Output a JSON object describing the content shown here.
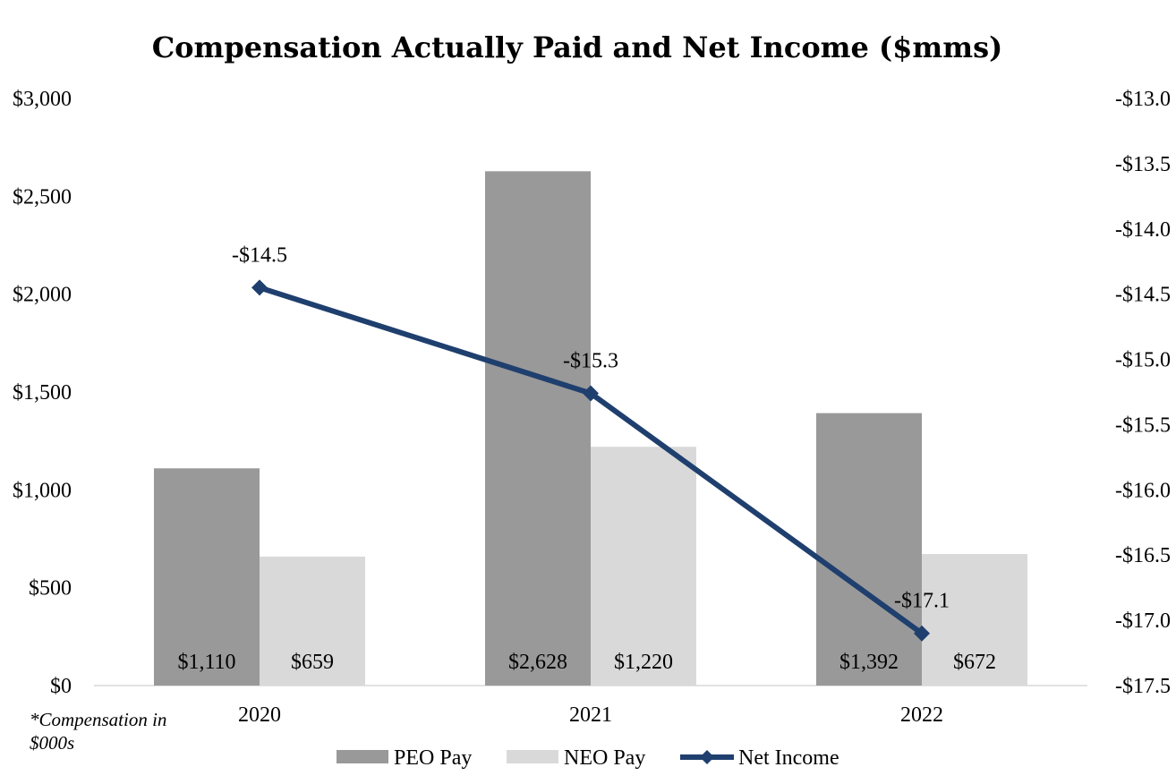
{
  "chart_data": {
    "type": "bar",
    "title": "Compensation Actually Paid and Net Income ($mms)",
    "categories": [
      "2020",
      "2021",
      "2022"
    ],
    "series": [
      {
        "name": "PEO Pay",
        "type": "bar",
        "axis": "left",
        "color": "#999999",
        "values": [
          1110,
          2628,
          1392
        ],
        "labels": [
          "$1,110",
          "$2,628",
          "$1,392"
        ]
      },
      {
        "name": "NEO Pay",
        "type": "bar",
        "axis": "left",
        "color": "#d9d9d9",
        "values": [
          659,
          1220,
          672
        ],
        "labels": [
          "$659",
          "$1,220",
          "$672"
        ]
      },
      {
        "name": "Net Income",
        "type": "line",
        "axis": "right",
        "color": "#1f3f6e",
        "values": [
          -14.45,
          -15.26,
          -17.1
        ],
        "labels": [
          "-$14.5",
          "-$15.3",
          "-$17.1"
        ]
      }
    ],
    "left_axis": {
      "min": 0,
      "max": 3000,
      "ticks": [
        0,
        500,
        1000,
        1500,
        2000,
        2500,
        3000
      ],
      "tick_labels": [
        "$0",
        "$500",
        "$1,000",
        "$1,500",
        "$2,000",
        "$2,500",
        "$3,000"
      ]
    },
    "right_axis": {
      "min": -17.5,
      "max": -13.0,
      "ticks": [
        -17.5,
        -17.0,
        -16.5,
        -16.0,
        -15.5,
        -15.0,
        -14.5,
        -14.0,
        -13.5,
        -13.0
      ],
      "tick_labels": [
        "-$17.5",
        "-$17.0",
        "-$16.5",
        "-$16.0",
        "-$15.5",
        "-$15.0",
        "-$14.5",
        "-$14.0",
        "-$13.5",
        "-$13.0"
      ]
    },
    "legend": [
      "PEO Pay",
      "NEO Pay",
      "Net Income"
    ],
    "legend_position": "bottom",
    "grid": false,
    "annotation": [
      "*Compensation in",
      "$000s"
    ]
  }
}
